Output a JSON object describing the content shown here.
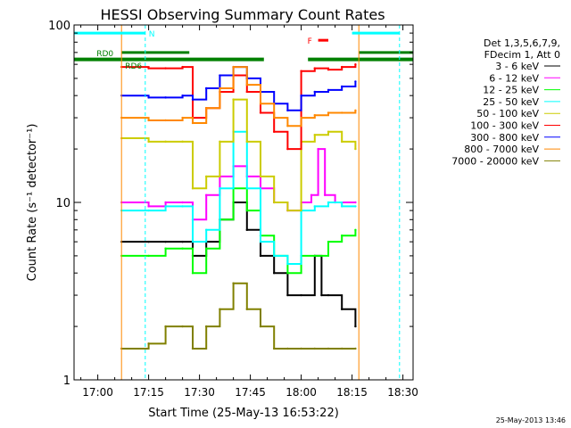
{
  "chart_data": {
    "type": "line",
    "title": "HESSI Observing Summary Count Rates",
    "xlabel": "Start Time (25-May-13 16:53:22)",
    "ylabel": "Count Rate (s⁻¹ detector⁻¹)",
    "y_scale": "log",
    "ylim": [
      1,
      100
    ],
    "xlim": [
      "16:53",
      "18:33"
    ],
    "x_ticks": [
      "17:00",
      "17:15",
      "17:30",
      "17:45",
      "18:00",
      "18:15",
      "18:30"
    ],
    "y_ticks": [
      "1",
      "10",
      "100"
    ],
    "legend_position": "right",
    "legend_header": [
      "Det 1,3,5,6,7,9,",
      "FDecim 1, Att 0"
    ],
    "series": [
      {
        "name": "3 - 6 keV",
        "color": "#000000",
        "x": [
          "17:07",
          "17:15",
          "17:20",
          "17:25",
          "17:28",
          "17:32",
          "17:36",
          "17:40",
          "17:44",
          "17:48",
          "17:52",
          "17:56",
          "18:00",
          "18:04",
          "18:06",
          "18:08",
          "18:12",
          "18:16"
        ],
        "y": [
          6,
          6,
          6,
          6,
          5,
          6,
          8,
          10,
          7,
          5,
          4,
          3,
          3,
          5,
          3,
          3,
          2.5,
          2
        ]
      },
      {
        "name": "6 - 12 keV",
        "color": "#ff00ff",
        "x": [
          "17:07",
          "17:15",
          "17:20",
          "17:25",
          "17:28",
          "17:32",
          "17:36",
          "17:40",
          "17:44",
          "17:48",
          "17:52",
          "17:56",
          "18:00",
          "18:03",
          "18:05",
          "18:07",
          "18:10",
          "18:16"
        ],
        "y": [
          10,
          9.5,
          10,
          10,
          8,
          11,
          14,
          16,
          14,
          12,
          10,
          9,
          10,
          11,
          20,
          11,
          10,
          10
        ]
      },
      {
        "name": "12 - 25 keV",
        "color": "#00ff00",
        "x": [
          "17:07",
          "17:15",
          "17:20",
          "17:25",
          "17:28",
          "17:32",
          "17:36",
          "17:40",
          "17:44",
          "17:48",
          "17:52",
          "17:56",
          "18:00",
          "18:04",
          "18:08",
          "18:12",
          "18:16"
        ],
        "y": [
          5,
          5,
          5.5,
          5.5,
          4,
          5.5,
          8,
          12,
          9,
          6.5,
          5,
          4,
          5,
          5,
          6,
          6.5,
          7
        ]
      },
      {
        "name": "25 - 50 keV",
        "color": "#00ffff",
        "x": [
          "17:07",
          "17:15",
          "17:20",
          "17:25",
          "17:28",
          "17:32",
          "17:36",
          "17:40",
          "17:44",
          "17:48",
          "17:52",
          "17:56",
          "18:00",
          "18:04",
          "18:08",
          "18:12",
          "18:16"
        ],
        "y": [
          9,
          9,
          9.5,
          9.5,
          6,
          7,
          12,
          25,
          12,
          6,
          5,
          4.5,
          9,
          9.5,
          10,
          9.5,
          9.5
        ]
      },
      {
        "name": "50 - 100 keV",
        "color": "#cccc00",
        "x": [
          "17:07",
          "17:15",
          "17:20",
          "17:25",
          "17:28",
          "17:32",
          "17:36",
          "17:40",
          "17:44",
          "17:48",
          "17:52",
          "17:56",
          "18:00",
          "18:04",
          "18:08",
          "18:12",
          "18:16"
        ],
        "y": [
          23,
          22,
          22,
          22,
          12,
          14,
          22,
          38,
          22,
          14,
          10,
          9,
          22,
          24,
          25,
          22,
          20
        ]
      },
      {
        "name": "100 - 300 keV",
        "color": "#ff0000",
        "x": [
          "17:07",
          "17:15",
          "17:20",
          "17:25",
          "17:28",
          "17:32",
          "17:36",
          "17:40",
          "17:44",
          "17:48",
          "17:52",
          "17:56",
          "18:00",
          "18:04",
          "18:08",
          "18:12",
          "18:16"
        ],
        "y": [
          58,
          57,
          57,
          58,
          30,
          34,
          42,
          52,
          42,
          32,
          25,
          20,
          55,
          57,
          56,
          58,
          60
        ]
      },
      {
        "name": "300 - 800 keV",
        "color": "#0000ff",
        "x": [
          "17:07",
          "17:15",
          "17:20",
          "17:25",
          "17:28",
          "17:32",
          "17:36",
          "17:40",
          "17:44",
          "17:48",
          "17:52",
          "17:56",
          "18:00",
          "18:04",
          "18:08",
          "18:12",
          "18:16"
        ],
        "y": [
          40,
          39,
          39,
          40,
          38,
          44,
          52,
          58,
          50,
          42,
          36,
          33,
          40,
          42,
          43,
          45,
          48
        ]
      },
      {
        "name": "800 - 7000 keV",
        "color": "#ff8800",
        "x": [
          "17:07",
          "17:15",
          "17:20",
          "17:25",
          "17:28",
          "17:32",
          "17:36",
          "17:40",
          "17:44",
          "17:48",
          "17:52",
          "17:56",
          "18:00",
          "18:04",
          "18:08",
          "18:12",
          "18:16"
        ],
        "y": [
          30,
          29,
          29,
          30,
          28,
          34,
          44,
          58,
          46,
          36,
          30,
          27,
          30,
          31,
          32,
          32,
          33
        ]
      },
      {
        "name": "7000 - 20000 keV",
        "color": "#808000",
        "x": [
          "17:07",
          "17:15",
          "17:20",
          "17:25",
          "17:28",
          "17:32",
          "17:36",
          "17:40",
          "17:44",
          "17:48",
          "17:52",
          "17:56",
          "18:00",
          "18:04",
          "18:08",
          "18:12",
          "18:16"
        ],
        "y": [
          1.5,
          1.6,
          2,
          2,
          1.5,
          2,
          2.5,
          3.5,
          2.5,
          2,
          1.5,
          1.5,
          1.5,
          1.5,
          1.5,
          1.5,
          1.5
        ]
      }
    ],
    "annotations": [
      {
        "label": "RD0",
        "color": "#008000"
      },
      {
        "label": "RD6",
        "color": "#008000"
      },
      {
        "label": "N",
        "color": "#00ffff"
      },
      {
        "label": "F",
        "color": "#ff0000"
      }
    ],
    "intervals": {
      "night": [
        [
          "16:53",
          "17:14"
        ],
        [
          "18:15",
          "18:29"
        ]
      ],
      "saa": [
        [
          "17:07",
          "17:27"
        ],
        [
          "18:17",
          "18:33"
        ]
      ],
      "flare": [
        [
          "18:05",
          "18:08"
        ]
      ],
      "decimation": [
        [
          "16:53",
          "17:49"
        ],
        [
          "18:02",
          "18:33"
        ]
      ]
    },
    "timestamp": "25-May-2013 13:46"
  }
}
